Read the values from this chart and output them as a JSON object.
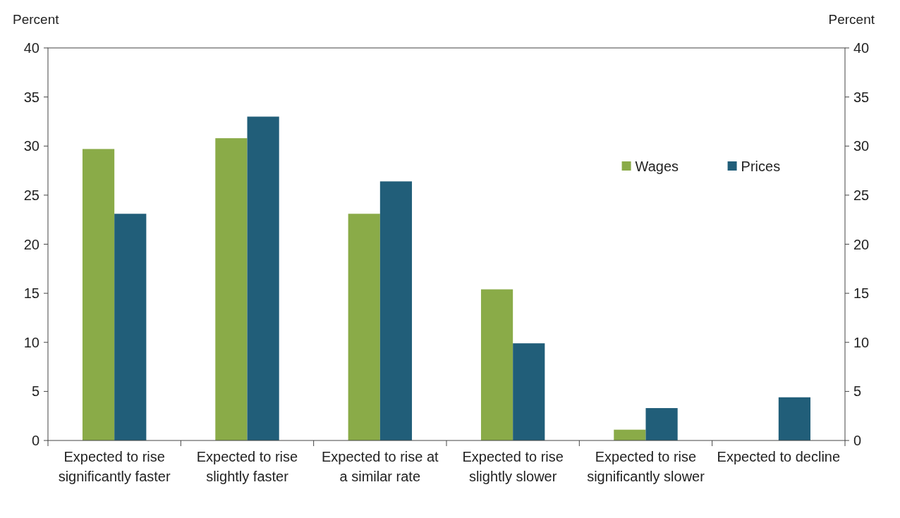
{
  "chart_data": {
    "type": "bar",
    "ylabel": "Percent",
    "y2label": "Percent",
    "categories": [
      "Expected to rise significantly faster",
      "Expected to rise slightly faster",
      "Expected to rise at a similar rate",
      "Expected to rise slightly slower",
      "Expected to rise significantly slower",
      "Expected to decline"
    ],
    "series": [
      {
        "name": "Wages",
        "color": "#8aab48",
        "values": [
          29.7,
          30.8,
          23.1,
          15.4,
          1.1,
          0
        ]
      },
      {
        "name": "Prices",
        "color": "#215e79",
        "values": [
          23.1,
          33.0,
          26.4,
          9.9,
          3.3,
          4.4
        ]
      }
    ],
    "ylim": [
      0,
      40
    ],
    "yticks": [
      0,
      5,
      10,
      15,
      20,
      25,
      30,
      35,
      40
    ],
    "y2lim": [
      0,
      40
    ],
    "y2ticks": [
      0,
      5,
      10,
      15,
      20,
      25,
      30,
      35,
      40
    ],
    "grid": false,
    "legend": "top right"
  }
}
